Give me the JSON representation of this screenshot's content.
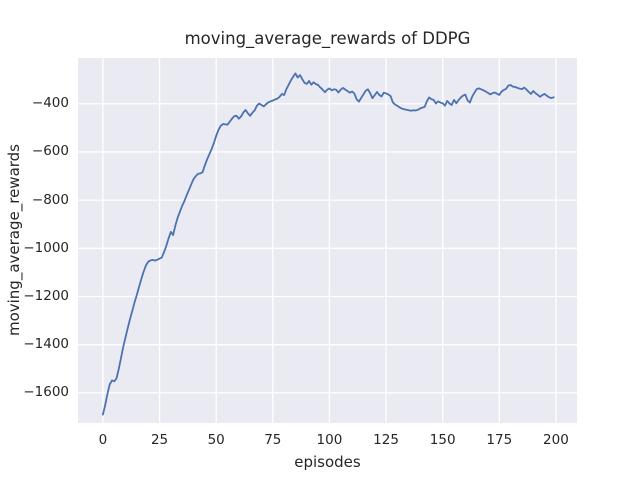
{
  "chart_data": {
    "type": "line",
    "title": "moving_average_rewards of DDPG",
    "xlabel": "episodes",
    "ylabel": "moving_average_rewards",
    "xlim": [
      -11,
      209.3
    ],
    "ylim": [
      -1725,
      -210
    ],
    "x_ticks": [
      0,
      25,
      50,
      75,
      100,
      125,
      150,
      175,
      200
    ],
    "x_tick_labels": [
      "0",
      "25",
      "50",
      "75",
      "100",
      "125",
      "150",
      "175",
      "200"
    ],
    "y_ticks": [
      -400,
      -600,
      -800,
      -1000,
      -1200,
      -1400,
      -1600
    ],
    "y_tick_labels": [
      "−400",
      "−600",
      "−800",
      "−1000",
      "−1200",
      "−1400",
      "−1600"
    ],
    "grid": true,
    "legend": false,
    "plot_bg": "#EAEAF2",
    "grid_color": "#FFFFFF",
    "line_color": "#4C72B0",
    "text_color": "#262626",
    "series": [
      {
        "name": "moving_average_rewards",
        "x": [
          0,
          1,
          2,
          3,
          4,
          5,
          6,
          7,
          8,
          9,
          10,
          11,
          12,
          13,
          14,
          15,
          16,
          17,
          18,
          19,
          20,
          21,
          22,
          23,
          24,
          25,
          26,
          27,
          28,
          29,
          30,
          31,
          32,
          33,
          34,
          35,
          36,
          37,
          38,
          39,
          40,
          41,
          42,
          43,
          44,
          45,
          46,
          47,
          48,
          49,
          50,
          51,
          52,
          53,
          54,
          55,
          56,
          57,
          58,
          59,
          60,
          61,
          62,
          63,
          64,
          65,
          66,
          67,
          68,
          69,
          70,
          71,
          72,
          73,
          74,
          75,
          76,
          77,
          78,
          79,
          80,
          81,
          82,
          83,
          84,
          85,
          86,
          87,
          88,
          89,
          90,
          91,
          92,
          93,
          94,
          95,
          96,
          97,
          98,
          99,
          100,
          101,
          102,
          103,
          104,
          105,
          106,
          107,
          108,
          109,
          110,
          111,
          112,
          113,
          114,
          115,
          116,
          117,
          118,
          119,
          120,
          121,
          122,
          123,
          124,
          125,
          126,
          127,
          128,
          129,
          130,
          131,
          132,
          133,
          134,
          135,
          136,
          137,
          138,
          139,
          140,
          141,
          142,
          143,
          144,
          145,
          146,
          147,
          148,
          149,
          150,
          151,
          152,
          153,
          154,
          155,
          156,
          157,
          158,
          159,
          160,
          161,
          162,
          163,
          164,
          165,
          166,
          167,
          168,
          169,
          170,
          171,
          172,
          173,
          174,
          175,
          176,
          177,
          178,
          179,
          180,
          181,
          182,
          183,
          184,
          185,
          186,
          187,
          188,
          189,
          190,
          191,
          192,
          193,
          194,
          195,
          196,
          197,
          198,
          199
        ],
        "y": [
          -1690,
          -1650,
          -1605,
          -1565,
          -1548,
          -1552,
          -1540,
          -1500,
          -1455,
          -1408,
          -1368,
          -1330,
          -1292,
          -1258,
          -1224,
          -1192,
          -1158,
          -1126,
          -1096,
          -1070,
          -1056,
          -1050,
          -1048,
          -1051,
          -1047,
          -1043,
          -1038,
          -1015,
          -990,
          -958,
          -932,
          -945,
          -905,
          -872,
          -848,
          -823,
          -803,
          -779,
          -757,
          -734,
          -713,
          -700,
          -691,
          -689,
          -684,
          -656,
          -631,
          -609,
          -588,
          -563,
          -533,
          -509,
          -492,
          -484,
          -485,
          -487,
          -474,
          -462,
          -451,
          -450,
          -462,
          -453,
          -436,
          -426,
          -440,
          -450,
          -437,
          -427,
          -408,
          -399,
          -405,
          -411,
          -402,
          -394,
          -390,
          -387,
          -382,
          -379,
          -371,
          -359,
          -364,
          -339,
          -321,
          -303,
          -287,
          -274,
          -291,
          -281,
          -297,
          -313,
          -318,
          -305,
          -321,
          -311,
          -318,
          -322,
          -333,
          -341,
          -352,
          -342,
          -336,
          -344,
          -340,
          -342,
          -353,
          -341,
          -334,
          -341,
          -347,
          -354,
          -349,
          -357,
          -381,
          -391,
          -376,
          -361,
          -346,
          -340,
          -356,
          -377,
          -364,
          -351,
          -363,
          -370,
          -354,
          -357,
          -361,
          -368,
          -394,
          -403,
          -409,
          -415,
          -420,
          -423,
          -425,
          -427,
          -429,
          -427,
          -428,
          -425,
          -420,
          -416,
          -413,
          -390,
          -374,
          -381,
          -384,
          -399,
          -390,
          -395,
          -398,
          -408,
          -388,
          -399,
          -405,
          -384,
          -398,
          -385,
          -374,
          -366,
          -362,
          -386,
          -395,
          -371,
          -354,
          -339,
          -336,
          -340,
          -344,
          -349,
          -355,
          -361,
          -356,
          -353,
          -358,
          -363,
          -349,
          -343,
          -338,
          -324,
          -322,
          -329,
          -330,
          -334,
          -337,
          -339,
          -333,
          -341,
          -351,
          -359,
          -347,
          -356,
          -363,
          -371,
          -364,
          -359,
          -367,
          -373,
          -376,
          -373
        ]
      }
    ]
  }
}
